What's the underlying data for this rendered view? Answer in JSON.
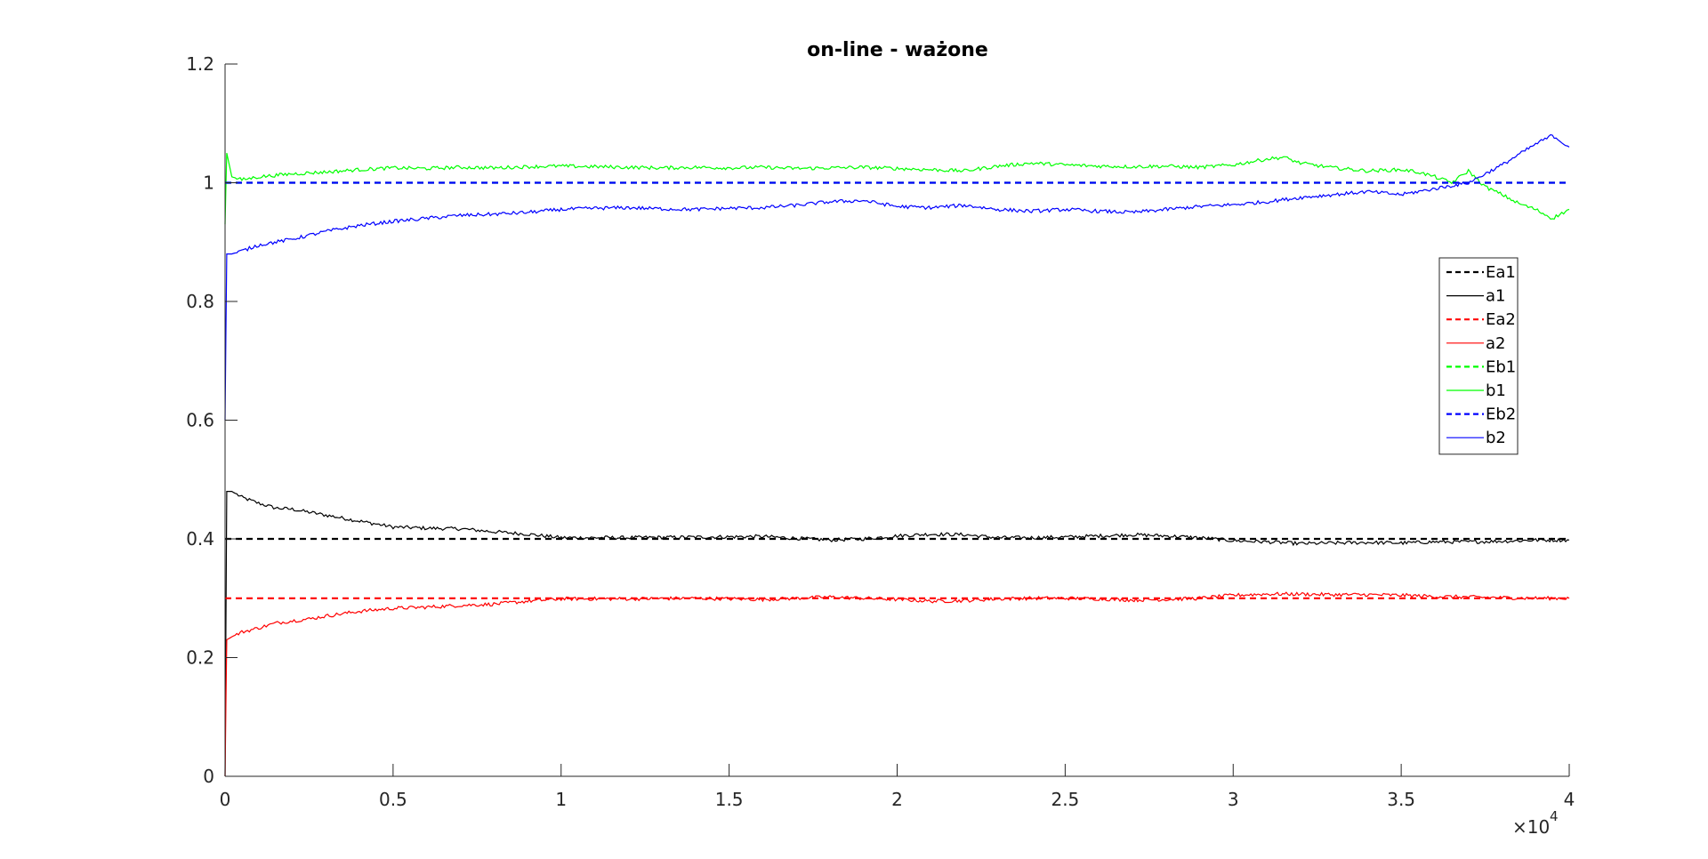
{
  "chart_data": {
    "type": "line",
    "title": "on-line - ważone",
    "xlabel": "",
    "ylabel": "",
    "xlim": [
      0,
      40000
    ],
    "ylim": [
      0,
      1.2
    ],
    "x_tick_values": [
      0,
      5000,
      10000,
      15000,
      20000,
      25000,
      30000,
      35000,
      40000
    ],
    "x_tick_labels": [
      "0",
      "0.5",
      "1",
      "1.5",
      "2",
      "2.5",
      "3",
      "3.5",
      "4"
    ],
    "x_exponent_label": "×10",
    "x_exponent_power": "4",
    "y_tick_values": [
      0,
      0.2,
      0.4,
      0.6,
      0.8,
      1.0,
      1.2
    ],
    "y_tick_labels": [
      "0",
      "0.2",
      "0.4",
      "0.6",
      "0.8",
      "1",
      "1.2"
    ],
    "grid": false,
    "legend_placement": "right",
    "series": [
      {
        "name": "Ea1",
        "color": "#000000",
        "style": "dashed",
        "x": [
          0,
          40000
        ],
        "y": [
          0.4,
          0.4
        ]
      },
      {
        "name": "a1",
        "color": "#000000",
        "style": "solid",
        "x": [
          0,
          50,
          200,
          500,
          1000,
          1500,
          2000,
          2500,
          3000,
          4000,
          5000,
          6000,
          7000,
          8000,
          9000,
          10000,
          12000,
          14000,
          16000,
          18000,
          19000,
          20000,
          21000,
          22000,
          23000,
          24000,
          25000,
          26000,
          27000,
          28000,
          29000,
          30000,
          31000,
          32000,
          33000,
          34000,
          35000,
          36000,
          37000,
          38000,
          39000,
          40000
        ],
        "y": [
          0.0,
          0.48,
          0.48,
          0.47,
          0.46,
          0.452,
          0.45,
          0.445,
          0.44,
          0.43,
          0.42,
          0.418,
          0.417,
          0.412,
          0.408,
          0.402,
          0.402,
          0.403,
          0.404,
          0.398,
          0.4,
          0.405,
          0.408,
          0.407,
          0.402,
          0.402,
          0.403,
          0.405,
          0.407,
          0.405,
          0.402,
          0.397,
          0.395,
          0.392,
          0.393,
          0.394,
          0.393,
          0.395,
          0.395,
          0.396,
          0.398,
          0.398
        ]
      },
      {
        "name": "Ea2",
        "color": "#ff0000",
        "style": "dashed",
        "x": [
          0,
          40000
        ],
        "y": [
          0.3,
          0.3
        ]
      },
      {
        "name": "a2",
        "color": "#ff0000",
        "style": "solid",
        "x": [
          0,
          50,
          200,
          500,
          1000,
          1500,
          2000,
          2500,
          3000,
          4000,
          5000,
          6000,
          7000,
          8000,
          9000,
          10000,
          12000,
          14000,
          16000,
          18000,
          19000,
          20000,
          21000,
          22000,
          23000,
          24000,
          25000,
          26000,
          27000,
          28000,
          29000,
          30000,
          31000,
          32000,
          33000,
          34000,
          35000,
          36000,
          37000,
          38000,
          39000,
          40000
        ],
        "y": [
          0.0,
          0.23,
          0.235,
          0.243,
          0.25,
          0.258,
          0.262,
          0.265,
          0.27,
          0.278,
          0.283,
          0.285,
          0.288,
          0.29,
          0.295,
          0.299,
          0.299,
          0.3,
          0.298,
          0.302,
          0.3,
          0.298,
          0.295,
          0.296,
          0.299,
          0.3,
          0.3,
          0.299,
          0.297,
          0.298,
          0.3,
          0.305,
          0.307,
          0.307,
          0.306,
          0.306,
          0.305,
          0.303,
          0.302,
          0.301,
          0.3,
          0.3
        ]
      },
      {
        "name": "Eb1",
        "color": "#00ff00",
        "style": "dashed",
        "x": [
          0,
          40000
        ],
        "y": [
          1.0,
          1.0
        ]
      },
      {
        "name": "b1",
        "color": "#00ff00",
        "style": "solid",
        "x": [
          0,
          50,
          200,
          500,
          1000,
          2000,
          3000,
          4000,
          5000,
          6000,
          7000,
          8000,
          9000,
          10000,
          11000,
          12000,
          13000,
          14000,
          15000,
          16000,
          17000,
          18000,
          19000,
          20000,
          21000,
          22000,
          23000,
          24000,
          25000,
          26000,
          27000,
          28000,
          29000,
          30000,
          31000,
          31500,
          32000,
          33000,
          34000,
          35000,
          35500,
          36000,
          36500,
          37000,
          37500,
          38000,
          38500,
          39000,
          39500,
          40000
        ],
        "y": [
          0.93,
          1.05,
          1.01,
          1.005,
          1.01,
          1.015,
          1.018,
          1.022,
          1.025,
          1.024,
          1.026,
          1.025,
          1.027,
          1.028,
          1.027,
          1.026,
          1.025,
          1.026,
          1.025,
          1.026,
          1.024,
          1.025,
          1.026,
          1.024,
          1.022,
          1.02,
          1.028,
          1.033,
          1.03,
          1.028,
          1.027,
          1.028,
          1.026,
          1.03,
          1.04,
          1.043,
          1.033,
          1.025,
          1.02,
          1.022,
          1.018,
          1.01,
          1.0,
          1.02,
          0.993,
          0.98,
          0.965,
          0.955,
          0.94,
          0.955
        ]
      },
      {
        "name": "Eb2",
        "color": "#0000ff",
        "style": "dashed",
        "x": [
          0,
          40000
        ],
        "y": [
          1.0,
          1.0
        ]
      },
      {
        "name": "b2",
        "color": "#0000ff",
        "style": "solid",
        "x": [
          0,
          50,
          200,
          500,
          1000,
          2000,
          3000,
          4000,
          5000,
          6000,
          7000,
          8000,
          9000,
          10000,
          11000,
          12000,
          13000,
          14000,
          15000,
          16000,
          17000,
          18000,
          19000,
          20000,
          21000,
          22000,
          23000,
          24000,
          25000,
          26000,
          27000,
          28000,
          29000,
          30000,
          31000,
          32000,
          33000,
          34000,
          35000,
          36000,
          37000,
          38000,
          39000,
          39500,
          40000
        ],
        "y": [
          0.6,
          0.88,
          0.88,
          0.885,
          0.895,
          0.905,
          0.918,
          0.928,
          0.935,
          0.94,
          0.945,
          0.947,
          0.95,
          0.955,
          0.957,
          0.958,
          0.956,
          0.955,
          0.957,
          0.958,
          0.962,
          0.968,
          0.97,
          0.96,
          0.958,
          0.962,
          0.955,
          0.952,
          0.955,
          0.952,
          0.95,
          0.955,
          0.96,
          0.963,
          0.968,
          0.975,
          0.98,
          0.985,
          0.98,
          0.99,
          1.0,
          1.03,
          1.065,
          1.08,
          1.06
        ]
      }
    ]
  }
}
